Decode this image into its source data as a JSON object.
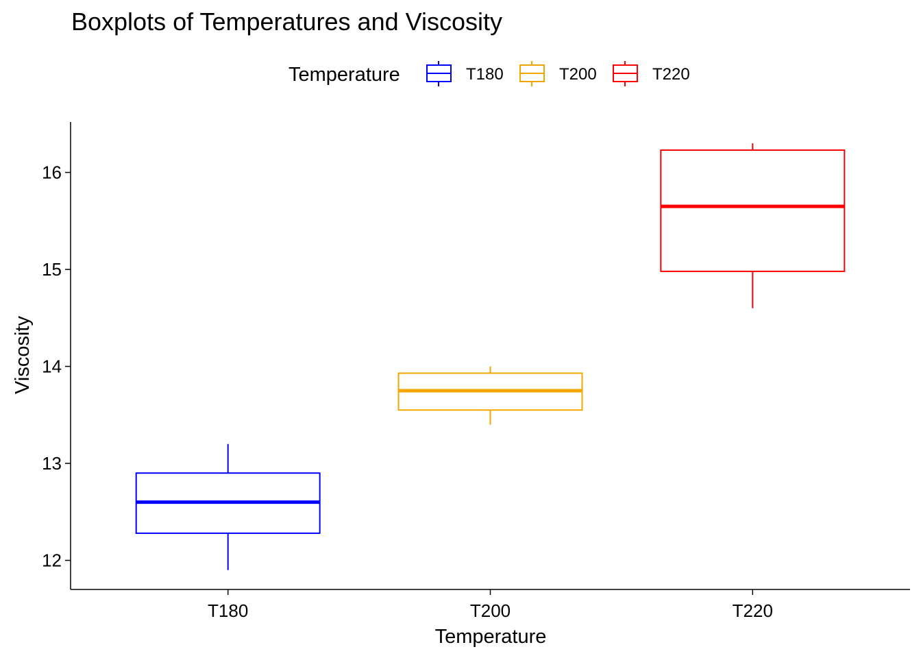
{
  "chart_data": {
    "type": "boxplot",
    "title": "Boxplots of Temperatures and Viscosity",
    "xlabel": "Temperature",
    "ylabel": "Viscosity",
    "ylim": [
      11.7,
      16.52
    ],
    "yticks": [
      12,
      13,
      14,
      15,
      16
    ],
    "yticklabels": [
      "12",
      "13",
      "14",
      "15",
      "16"
    ],
    "legend": {
      "title": "Temperature",
      "position": "top",
      "entries": [
        "T180",
        "T200",
        "T220"
      ]
    },
    "grid": false,
    "categories": [
      "T180",
      "T200",
      "T220"
    ],
    "series": [
      {
        "name": "T180",
        "color": "#0000ff",
        "whisker_low": 11.9,
        "q1": 12.28,
        "median": 12.6,
        "q3": 12.9,
        "whisker_high": 13.2
      },
      {
        "name": "T200",
        "color": "#f5a500",
        "whisker_low": 13.4,
        "q1": 13.55,
        "median": 13.75,
        "q3": 13.93,
        "whisker_high": 14.0
      },
      {
        "name": "T220",
        "color": "#ff0000",
        "whisker_low": 14.6,
        "q1": 14.98,
        "median": 15.65,
        "q3": 16.23,
        "whisker_high": 16.3
      }
    ]
  }
}
